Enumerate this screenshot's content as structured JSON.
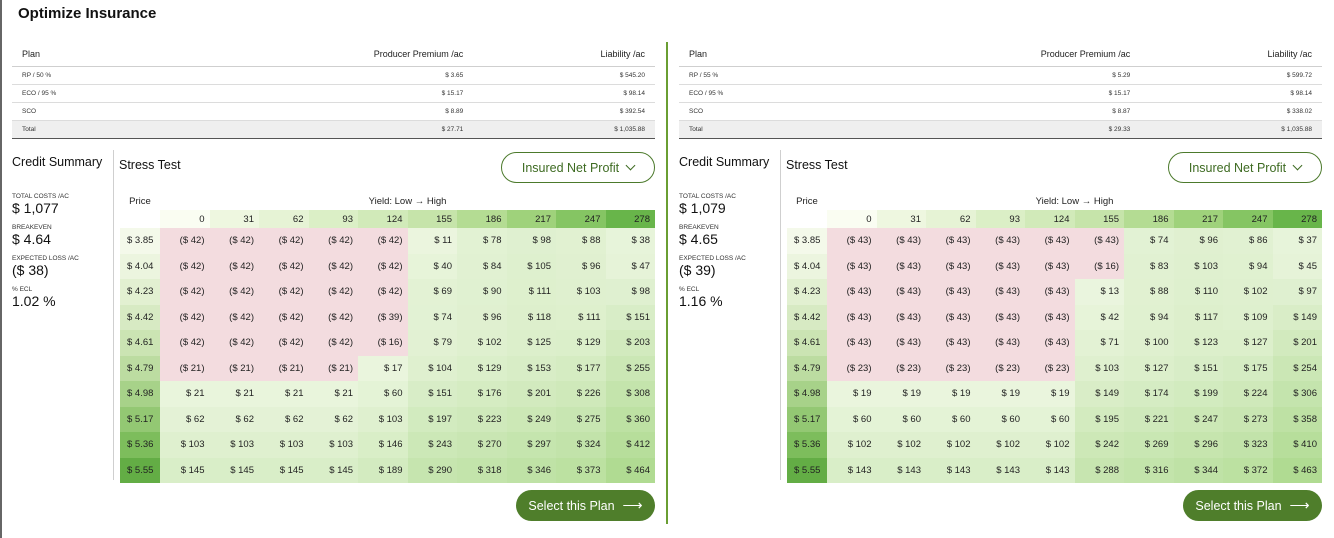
{
  "page": {
    "title": "Optimize Insurance"
  },
  "panels": [
    {
      "plans": {
        "headers": [
          "Plan",
          "Producer Premium /ac",
          "Liability /ac"
        ],
        "rows": [
          [
            "RP / 50 %",
            "$ 3.65",
            "$ 545.20"
          ],
          [
            "ECO / 95 %",
            "$ 15.17",
            "$ 98.14"
          ],
          [
            "SCO",
            "$ 8.89",
            "$ 392.54"
          ],
          [
            "Total",
            "$ 27.71",
            "$ 1,035.88"
          ]
        ]
      },
      "credit": {
        "heading": "Credit Summary",
        "total_costs_label": "TOTAL COSTS /AC",
        "total_costs": "$ 1,077",
        "breakeven_label": "BREAKEVEN",
        "breakeven": "$ 4.64",
        "expected_loss_label": "EXPECTED LOSS /AC",
        "expected_loss": "($ 38)",
        "ecl_label": "% ECL",
        "ecl": "1.02 %"
      },
      "stress": {
        "title": "Stress Test",
        "dropdown": "Insured Net Profit",
        "price_label": "Price",
        "yield_label": "Yield: Low → High",
        "yields": [
          "0",
          "31",
          "62",
          "93",
          "124",
          "155",
          "186",
          "217",
          "247",
          "278"
        ],
        "prices": [
          "$ 3.85",
          "$ 4.04",
          "$ 4.23",
          "$ 4.42",
          "$ 4.61",
          "$ 4.79",
          "$ 4.98",
          "$ 5.17",
          "$ 5.36",
          "$ 5.55"
        ],
        "values": [
          [
            "($ 42)",
            "($ 42)",
            "($ 42)",
            "($ 42)",
            "($ 42)",
            "$ 11",
            "$ 78",
            "$ 98",
            "$ 88",
            "$ 38"
          ],
          [
            "($ 42)",
            "($ 42)",
            "($ 42)",
            "($ 42)",
            "($ 42)",
            "$ 40",
            "$ 84",
            "$ 105",
            "$ 96",
            "$ 47"
          ],
          [
            "($ 42)",
            "($ 42)",
            "($ 42)",
            "($ 42)",
            "($ 42)",
            "$ 69",
            "$ 90",
            "$ 111",
            "$ 103",
            "$ 98"
          ],
          [
            "($ 42)",
            "($ 42)",
            "($ 42)",
            "($ 42)",
            "($ 39)",
            "$ 74",
            "$ 96",
            "$ 118",
            "$ 111",
            "$ 151"
          ],
          [
            "($ 42)",
            "($ 42)",
            "($ 42)",
            "($ 42)",
            "($ 16)",
            "$ 79",
            "$ 102",
            "$ 125",
            "$ 129",
            "$ 203"
          ],
          [
            "($ 21)",
            "($ 21)",
            "($ 21)",
            "($ 21)",
            "$ 17",
            "$ 104",
            "$ 129",
            "$ 153",
            "$ 177",
            "$ 255"
          ],
          [
            "$ 21",
            "$ 21",
            "$ 21",
            "$ 21",
            "$ 60",
            "$ 151",
            "$ 176",
            "$ 201",
            "$ 226",
            "$ 308"
          ],
          [
            "$ 62",
            "$ 62",
            "$ 62",
            "$ 62",
            "$ 103",
            "$ 197",
            "$ 223",
            "$ 249",
            "$ 275",
            "$ 360"
          ],
          [
            "$ 103",
            "$ 103",
            "$ 103",
            "$ 103",
            "$ 146",
            "$ 243",
            "$ 270",
            "$ 297",
            "$ 324",
            "$ 412"
          ],
          [
            "$ 145",
            "$ 145",
            "$ 145",
            "$ 145",
            "$ 189",
            "$ 290",
            "$ 318",
            "$ 346",
            "$ 373",
            "$ 464"
          ]
        ]
      },
      "select_label": "Select this Plan"
    },
    {
      "plans": {
        "headers": [
          "Plan",
          "Producer Premium /ac",
          "Liability /ac"
        ],
        "rows": [
          [
            "RP / 55 %",
            "$ 5.29",
            "$ 599.72"
          ],
          [
            "ECO / 95 %",
            "$ 15.17",
            "$ 98.14"
          ],
          [
            "SCO",
            "$ 8.87",
            "$ 338.02"
          ],
          [
            "Total",
            "$ 29.33",
            "$ 1,035.88"
          ]
        ]
      },
      "credit": {
        "heading": "Credit Summary",
        "total_costs_label": "TOTAL COSTS /AC",
        "total_costs": "$ 1,079",
        "breakeven_label": "BREAKEVEN",
        "breakeven": "$ 4.65",
        "expected_loss_label": "EXPECTED LOSS /AC",
        "expected_loss": "($ 39)",
        "ecl_label": "% ECL",
        "ecl": "1.16 %"
      },
      "stress": {
        "title": "Stress Test",
        "dropdown": "Insured Net Profit",
        "price_label": "Price",
        "yield_label": "Yield: Low → High",
        "yields": [
          "0",
          "31",
          "62",
          "93",
          "124",
          "155",
          "186",
          "217",
          "247",
          "278"
        ],
        "prices": [
          "$ 3.85",
          "$ 4.04",
          "$ 4.23",
          "$ 4.42",
          "$ 4.61",
          "$ 4.79",
          "$ 4.98",
          "$ 5.17",
          "$ 5.36",
          "$ 5.55"
        ],
        "values": [
          [
            "($ 43)",
            "($ 43)",
            "($ 43)",
            "($ 43)",
            "($ 43)",
            "($ 43)",
            "$ 74",
            "$ 96",
            "$ 86",
            "$ 37"
          ],
          [
            "($ 43)",
            "($ 43)",
            "($ 43)",
            "($ 43)",
            "($ 43)",
            "($ 16)",
            "$ 83",
            "$ 103",
            "$ 94",
            "$ 45"
          ],
          [
            "($ 43)",
            "($ 43)",
            "($ 43)",
            "($ 43)",
            "($ 43)",
            "$ 13",
            "$ 88",
            "$ 110",
            "$ 102",
            "$ 97"
          ],
          [
            "($ 43)",
            "($ 43)",
            "($ 43)",
            "($ 43)",
            "($ 43)",
            "$ 42",
            "$ 94",
            "$ 117",
            "$ 109",
            "$ 149"
          ],
          [
            "($ 43)",
            "($ 43)",
            "($ 43)",
            "($ 43)",
            "($ 43)",
            "$ 71",
            "$ 100",
            "$ 123",
            "$ 127",
            "$ 201"
          ],
          [
            "($ 23)",
            "($ 23)",
            "($ 23)",
            "($ 23)",
            "($ 23)",
            "$ 103",
            "$ 127",
            "$ 151",
            "$ 175",
            "$ 254"
          ],
          [
            "$ 19",
            "$ 19",
            "$ 19",
            "$ 19",
            "$ 19",
            "$ 149",
            "$ 174",
            "$ 199",
            "$ 224",
            "$ 306"
          ],
          [
            "$ 60",
            "$ 60",
            "$ 60",
            "$ 60",
            "$ 60",
            "$ 195",
            "$ 221",
            "$ 247",
            "$ 273",
            "$ 358"
          ],
          [
            "$ 102",
            "$ 102",
            "$ 102",
            "$ 102",
            "$ 102",
            "$ 242",
            "$ 269",
            "$ 296",
            "$ 323",
            "$ 410"
          ],
          [
            "$ 143",
            "$ 143",
            "$ 143",
            "$ 143",
            "$ 143",
            "$ 288",
            "$ 316",
            "$ 344",
            "$ 372",
            "$ 463"
          ]
        ]
      },
      "select_label": "Select this Plan"
    }
  ]
}
